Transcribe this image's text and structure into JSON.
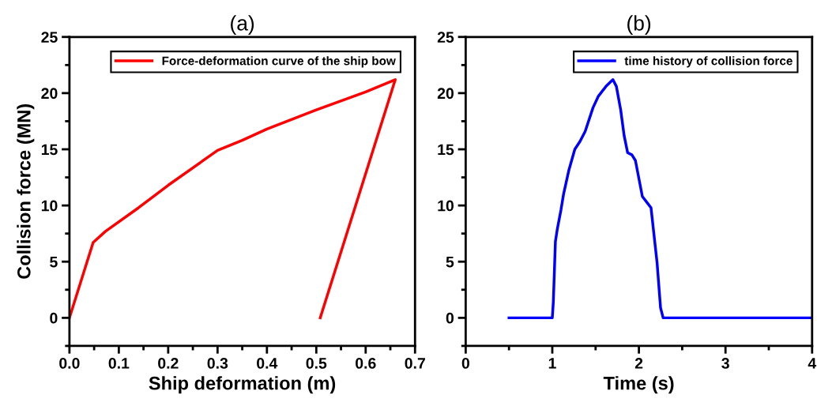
{
  "chart_data": [
    {
      "type": "line",
      "title": "(a)",
      "xlabel": "Ship deformation (m)",
      "ylabel": "Collision force (MN)",
      "legend": "top right",
      "grid": false,
      "xlim": [
        0,
        0.7
      ],
      "ylim": [
        -2.5,
        25
      ],
      "xticks": [
        {
          "value": 0,
          "label": "0.0"
        },
        {
          "value": 0.05,
          "label": null
        },
        {
          "value": 0.1,
          "label": "0.1"
        },
        {
          "value": 0.15,
          "label": null
        },
        {
          "value": 0.2,
          "label": "0.2"
        },
        {
          "value": 0.25,
          "label": null
        },
        {
          "value": 0.3,
          "label": "0.3"
        },
        {
          "value": 0.35,
          "label": null
        },
        {
          "value": 0.4,
          "label": "0.4"
        },
        {
          "value": 0.45,
          "label": null
        },
        {
          "value": 0.5,
          "label": "0.5"
        },
        {
          "value": 0.55,
          "label": null
        },
        {
          "value": 0.6,
          "label": "0.6"
        },
        {
          "value": 0.65,
          "label": null
        },
        {
          "value": 0.7,
          "label": "0.7"
        }
      ],
      "yticks": [
        {
          "value": -2.5,
          "label": null
        },
        0,
        {
          "value": 2.5,
          "label": null
        },
        5,
        {
          "value": 7.5,
          "label": null
        },
        10,
        {
          "value": 12.5,
          "label": null
        },
        15,
        {
          "value": 17.5,
          "label": null
        },
        20,
        {
          "value": 22.5,
          "label": null
        },
        25
      ],
      "series": [
        {
          "name": "Force-deformation curve of the ship bow",
          "color": "#ff0000",
          "x": [
            0,
            0.048,
            0.073,
            0.14,
            0.2,
            0.3,
            0.35,
            0.4,
            0.5,
            0.6,
            0.66,
            0.508
          ],
          "values": [
            0,
            6.7,
            7.7,
            9.8,
            11.8,
            14.9,
            15.8,
            16.8,
            18.5,
            20.1,
            21.2,
            0
          ]
        }
      ]
    },
    {
      "type": "line",
      "title": "(b)",
      "xlabel": "Time (s)",
      "legend": "top right",
      "grid": false,
      "xlim": [
        0,
        4
      ],
      "ylim": [
        -2.5,
        25
      ],
      "xticks": [
        0,
        {
          "value": 0.5,
          "label": null
        },
        1,
        {
          "value": 1.5,
          "label": null
        },
        2,
        {
          "value": 2.5,
          "label": null
        },
        3,
        {
          "value": 3.5,
          "label": null
        },
        4
      ],
      "yticks": [
        {
          "value": -2.5,
          "label": null
        },
        0,
        {
          "value": 2.5,
          "label": null
        },
        5,
        {
          "value": 7.5,
          "label": null
        },
        10,
        {
          "value": 12.5,
          "label": null
        },
        15,
        {
          "value": 17.5,
          "label": null
        },
        20,
        {
          "value": 22.5,
          "label": null
        },
        25
      ],
      "series": [
        {
          "name": "time history of collision force",
          "color": "#0000ff",
          "x": [
            0.5,
            1.0,
            1.012,
            1.036,
            1.058,
            1.1,
            1.13,
            1.19,
            1.26,
            1.32,
            1.38,
            1.47,
            1.53,
            1.62,
            1.7,
            1.74,
            1.79,
            1.83,
            1.87,
            1.92,
            1.96,
            2.0,
            2.04,
            2.09,
            2.14,
            2.17,
            2.21,
            2.25,
            2.28,
            4.0
          ],
          "values": [
            0,
            0,
            1.4,
            6.8,
            7.9,
            9.6,
            11.0,
            13.1,
            15.0,
            15.7,
            16.6,
            18.7,
            19.7,
            20.6,
            21.2,
            20.6,
            18.5,
            16.2,
            14.7,
            14.5,
            14.0,
            12.4,
            10.8,
            10.3,
            9.8,
            7.7,
            4.9,
            0.9,
            0,
            0
          ]
        }
      ]
    }
  ]
}
